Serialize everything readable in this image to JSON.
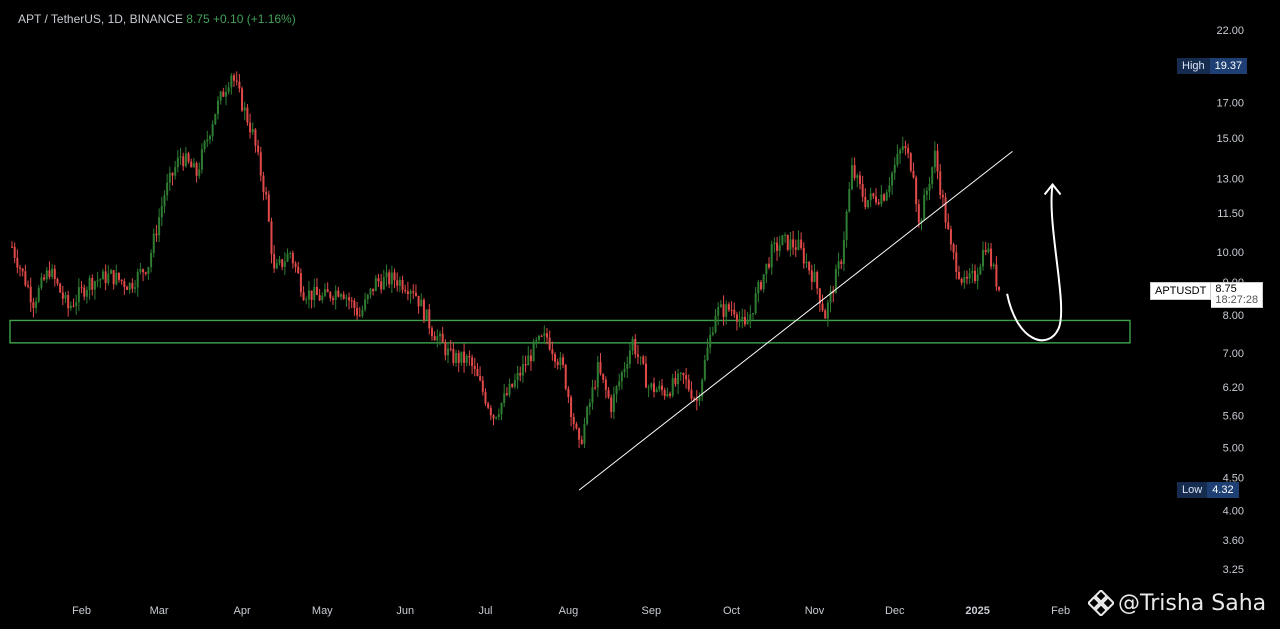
{
  "header": {
    "symbol_line": "APT / TetherUS, 1D, BINANCE",
    "last": "8.75",
    "change": "+0.10 (+1.16%)"
  },
  "price_axis": {
    "ticks": [
      "22.00",
      "17.00",
      "15.00",
      "13.00",
      "11.50",
      "10.00",
      "9.00",
      "8.00",
      "7.00",
      "6.20",
      "5.60",
      "5.00",
      "4.50",
      "4.00",
      "3.60",
      "3.25"
    ]
  },
  "time_axis": {
    "labels": [
      "Feb",
      "Mar",
      "Apr",
      "May",
      "Jun",
      "Jul",
      "Aug",
      "Sep",
      "Oct",
      "Nov",
      "Dec",
      "2025",
      "Feb"
    ]
  },
  "high_badge": {
    "label": "High",
    "value": "19.37"
  },
  "low_badge": {
    "label": "Low",
    "value": "4.32"
  },
  "last_price_box": {
    "symbol": "APTUSDT",
    "price": "8.75",
    "countdown": "18:27:28"
  },
  "watermark": {
    "text": "@Trisha Saha",
    "icon": "binance-diamond-icon"
  },
  "colors": {
    "up": "#2e7d32",
    "down": "#e24a4a",
    "zone": "#3fa34d",
    "bg": "#000000",
    "trendline": "#ffffff"
  },
  "chart_data": {
    "type": "candlestick",
    "scale": "log",
    "ylim": [
      3.1,
      24
    ],
    "x_months": [
      "2024-01",
      "2024-02",
      "2024-03",
      "2024-04",
      "2024-05",
      "2024-06",
      "2024-07",
      "2024-08",
      "2024-09",
      "2024-10",
      "2024-11",
      "2024-12",
      "2025-01",
      "2025-02"
    ],
    "close_path": [
      [
        "2024-01-06",
        10.2
      ],
      [
        "2024-01-14",
        8.4
      ],
      [
        "2024-01-20",
        9.4
      ],
      [
        "2024-01-27",
        8.2
      ],
      [
        "2024-02-04",
        9.0
      ],
      [
        "2024-02-12",
        9.2
      ],
      [
        "2024-02-19",
        8.9
      ],
      [
        "2024-02-26",
        9.6
      ],
      [
        "2024-03-03",
        12.3
      ],
      [
        "2024-03-09",
        14.1
      ],
      [
        "2024-03-15",
        13.2
      ],
      [
        "2024-03-22",
        16.5
      ],
      [
        "2024-03-28",
        18.9
      ],
      [
        "2024-04-05",
        15.2
      ],
      [
        "2024-04-10",
        12.1
      ],
      [
        "2024-04-13",
        9.3
      ],
      [
        "2024-04-19",
        10.0
      ],
      [
        "2024-04-24",
        8.7
      ],
      [
        "2024-05-01",
        8.5
      ],
      [
        "2024-05-08",
        8.8
      ],
      [
        "2024-05-15",
        8.0
      ],
      [
        "2024-05-21",
        9.0
      ],
      [
        "2024-05-28",
        9.1
      ],
      [
        "2024-06-04",
        8.8
      ],
      [
        "2024-06-11",
        7.6
      ],
      [
        "2024-06-18",
        6.9
      ],
      [
        "2024-06-25",
        6.8
      ],
      [
        "2024-07-04",
        5.6
      ],
      [
        "2024-07-12",
        6.3
      ],
      [
        "2024-07-20",
        7.2
      ],
      [
        "2024-07-24",
        7.4
      ],
      [
        "2024-07-30",
        6.6
      ],
      [
        "2024-08-05",
        5.0
      ],
      [
        "2024-08-12",
        6.6
      ],
      [
        "2024-08-17",
        5.8
      ],
      [
        "2024-08-25",
        7.3
      ],
      [
        "2024-08-31",
        6.2
      ],
      [
        "2024-09-06",
        6.1
      ],
      [
        "2024-09-13",
        6.4
      ],
      [
        "2024-09-18",
        5.9
      ],
      [
        "2024-09-25",
        8.1
      ],
      [
        "2024-10-02",
        8.2
      ],
      [
        "2024-10-06",
        7.6
      ],
      [
        "2024-10-12",
        9.0
      ],
      [
        "2024-10-16",
        10.0
      ],
      [
        "2024-10-20",
        10.4
      ],
      [
        "2024-10-26",
        10.2
      ],
      [
        "2024-11-01",
        9.1
      ],
      [
        "2024-11-05",
        8.0
      ],
      [
        "2024-11-11",
        9.8
      ],
      [
        "2024-11-15",
        13.4
      ],
      [
        "2024-11-20",
        12.0
      ],
      [
        "2024-11-27",
        12.3
      ],
      [
        "2024-12-04",
        14.6
      ],
      [
        "2024-12-08",
        13.4
      ],
      [
        "2024-12-10",
        11.0
      ],
      [
        "2024-12-16",
        14.1
      ],
      [
        "2024-12-22",
        10.1
      ],
      [
        "2024-12-27",
        8.9
      ],
      [
        "2024-12-31",
        9.2
      ],
      [
        "2025-01-04",
        10.3
      ],
      [
        "2025-01-09",
        8.75
      ]
    ],
    "support_zone": [
      7.25,
      7.85
    ],
    "trendline": [
      [
        "2024-08-05",
        4.3
      ],
      [
        "2025-01-14",
        14.3
      ]
    ],
    "projection": {
      "type": "arrow",
      "from": [
        "2025-01-12",
        8.75
      ],
      "low": [
        "2025-01-20",
        7.9
      ],
      "to": [
        "2025-01-29",
        12.9
      ]
    },
    "high": 19.37,
    "low": 4.32,
    "last": 8.75
  }
}
